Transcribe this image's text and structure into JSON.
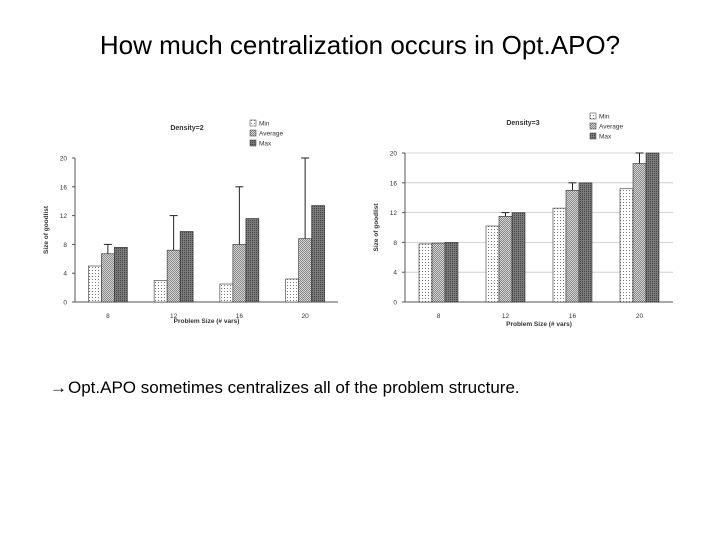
{
  "slide": {
    "title": "How much centralization occurs in Opt.APO?",
    "bullet_arrow": "→",
    "bullet_text": "Opt.APO sometimes centralizes all of the problem structure."
  },
  "chart_data": [
    {
      "type": "bar",
      "title": "Density=2",
      "xlabel": "Problem Size (# vars)",
      "ylabel": "Size of goodlist",
      "categories": [
        "8",
        "12",
        "16",
        "20"
      ],
      "ylim": [
        0,
        20
      ],
      "yticks": [
        "0",
        "4",
        "8",
        "12",
        "16",
        "20"
      ],
      "legend_position": "top-right",
      "grid": false,
      "series": [
        {
          "name": "Min",
          "values": [
            5,
            3,
            2.5,
            3.2
          ],
          "fill": "#ffffff"
        },
        {
          "name": "Average",
          "values": [
            6.7,
            7.2,
            8,
            8.8
          ],
          "fill": "#d4d4d4"
        },
        {
          "name": "Max",
          "values": [
            7.6,
            9.8,
            11.6,
            13.4
          ],
          "fill": "#7a7a7a"
        }
      ],
      "error_bars": [
        {
          "category": "8",
          "series": "Average",
          "high": 8
        },
        {
          "category": "12",
          "series": "Average",
          "high": 12
        },
        {
          "category": "16",
          "series": "Average",
          "high": 16
        },
        {
          "category": "20",
          "series": "Average",
          "high": 20
        }
      ]
    },
    {
      "type": "bar",
      "title": "Density=3",
      "xlabel": "Problem Size (# vars)",
      "ylabel": "Size of goodlist",
      "categories": [
        "8",
        "12",
        "16",
        "20"
      ],
      "ylim": [
        0,
        20
      ],
      "yticks": [
        "0",
        "4",
        "8",
        "12",
        "16",
        "20"
      ],
      "legend_position": "top-right",
      "grid": true,
      "series": [
        {
          "name": "Min",
          "values": [
            7.8,
            10.2,
            12.6,
            15.2
          ],
          "fill": "#ffffff"
        },
        {
          "name": "Average",
          "values": [
            7.9,
            11.5,
            15,
            18.6
          ],
          "fill": "#d4d4d4"
        },
        {
          "name": "Max",
          "values": [
            8,
            12,
            16,
            20
          ],
          "fill": "#7a7a7a"
        }
      ],
      "error_bars": [
        {
          "category": "12",
          "series": "Average",
          "high": 12
        },
        {
          "category": "16",
          "series": "Average",
          "high": 16
        },
        {
          "category": "20",
          "series": "Average",
          "high": 20
        }
      ]
    }
  ]
}
